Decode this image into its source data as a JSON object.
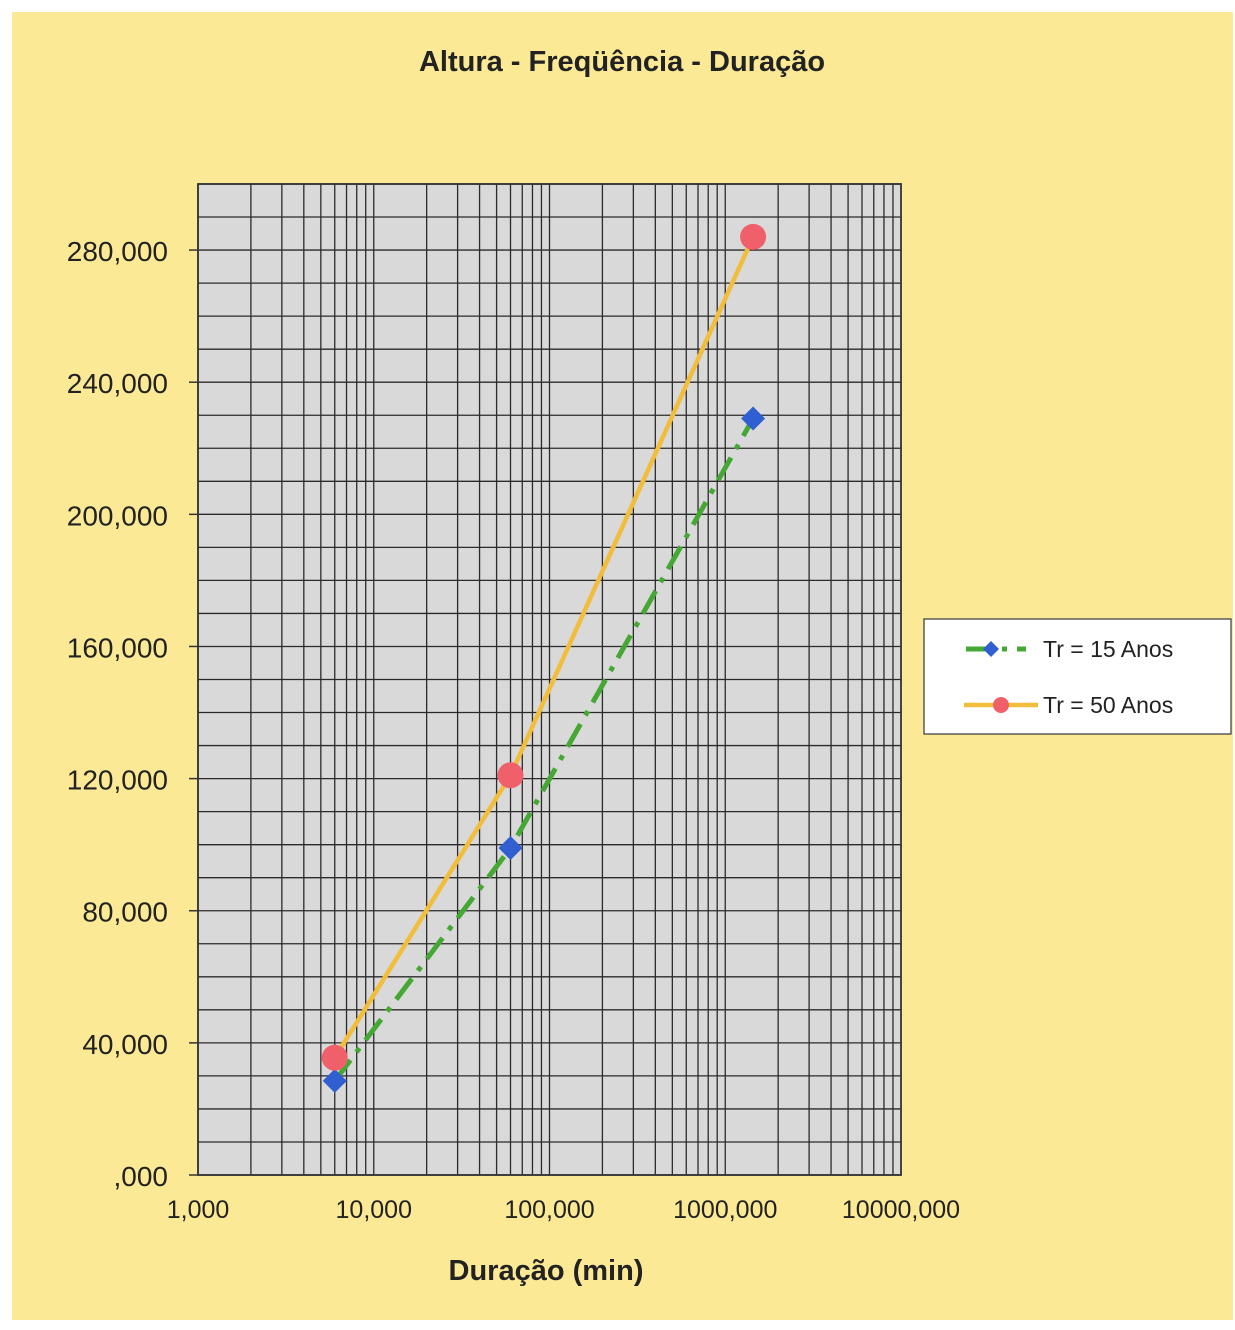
{
  "colors": {
    "background": "#fbe995",
    "plot_area": "#d9d9d9",
    "grid": "#2a2a2a",
    "series_15": "#46a834",
    "series_15_marker": "#2f5fd0",
    "series_50": "#f2bd3a",
    "series_50_marker": "#f0606a"
  },
  "chart_data": {
    "type": "line",
    "title": "Altura - Freqüência - Duração",
    "xlabel": "Duração (min)",
    "ylabel": "",
    "x_scale": "log",
    "xlim": [
      1,
      10000
    ],
    "ylim": [
      0,
      300
    ],
    "x_ticks": [
      {
        "value": 1,
        "label": "1,000"
      },
      {
        "value": 10,
        "label": "10,000"
      },
      {
        "value": 100,
        "label": "100,000"
      },
      {
        "value": 1000,
        "label": "1000,000"
      },
      {
        "value": 10000,
        "label": "10000,000"
      }
    ],
    "y_ticks": [
      {
        "value": 0,
        "label": ",000"
      },
      {
        "value": 40,
        "label": "40,000"
      },
      {
        "value": 80,
        "label": "80,000"
      },
      {
        "value": 120,
        "label": "120,000"
      },
      {
        "value": 160,
        "label": "160,000"
      },
      {
        "value": 200,
        "label": "200,000"
      },
      {
        "value": 240,
        "label": "240,000"
      },
      {
        "value": 280,
        "label": "280,000"
      }
    ],
    "grid": true,
    "legend_position": "right",
    "series": [
      {
        "name": "Tr = 15 Anos",
        "marker": "diamond",
        "line": "dash-dot",
        "x": [
          6,
          60,
          1440
        ],
        "y": [
          28.5,
          99,
          229
        ]
      },
      {
        "name": "Tr = 50 Anos",
        "marker": "circle",
        "line": "solid",
        "x": [
          6,
          60,
          1440
        ],
        "y": [
          35.5,
          121,
          284
        ]
      }
    ]
  }
}
